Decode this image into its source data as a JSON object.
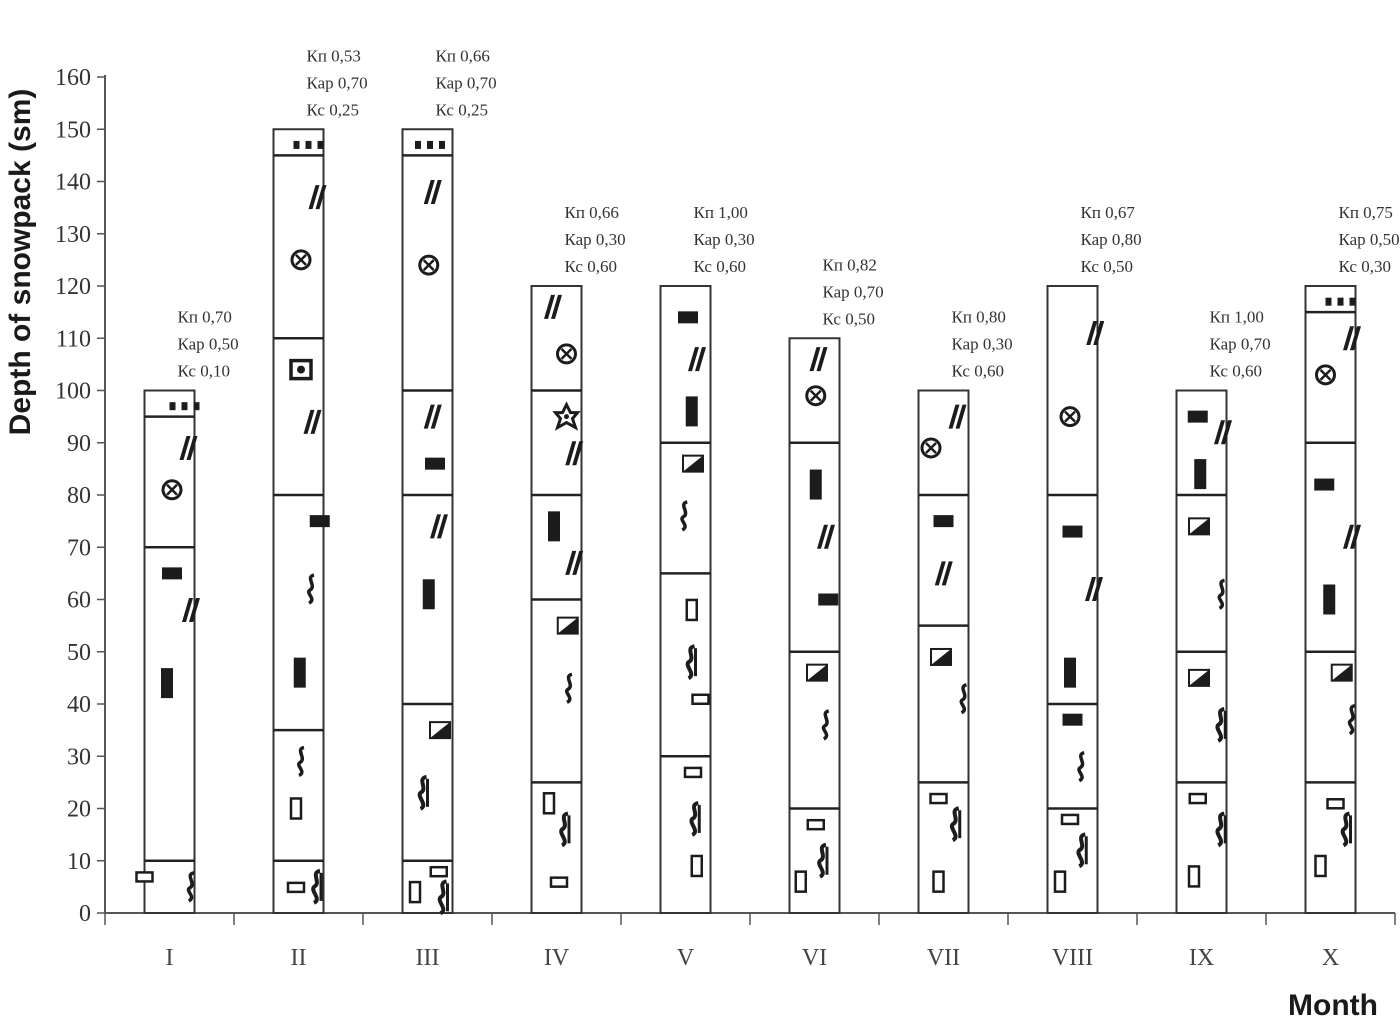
{
  "chart_data": {
    "type": "bar",
    "title": "",
    "ylabel": "Depth of snowpack (sm)",
    "xlabel": "Month",
    "ylim": [
      0,
      160
    ],
    "yticks": [
      0,
      10,
      20,
      30,
      40,
      50,
      60,
      70,
      80,
      90,
      100,
      110,
      120,
      130,
      140,
      150,
      160
    ],
    "categories": [
      "I",
      "II",
      "III",
      "IV",
      "V",
      "VI",
      "VII",
      "VIII",
      "IX",
      "X"
    ],
    "columns": [
      {
        "month": "I",
        "depth": 100,
        "layer_boundaries": [
          10,
          70,
          95
        ],
        "coefficients": [
          "Кп 0,70",
          "Кар 0,50",
          "Кс 0,10"
        ],
        "symbols": [
          {
            "s": "rect-open",
            "y": 7,
            "x": -1
          },
          {
            "s": "cup",
            "y": 5,
            "x": 0.85
          },
          {
            "s": "rect-v",
            "y": 44,
            "x": -0.1
          },
          {
            "s": "rect-h",
            "y": 65,
            "x": 0.1
          },
          {
            "s": "slash",
            "y": 58,
            "x": 0.7
          },
          {
            "s": "circle-x",
            "y": 81,
            "x": 0.1
          },
          {
            "s": "slash",
            "y": 89,
            "x": 0.6
          },
          {
            "s": "dots",
            "y": 97,
            "x": 0.6
          }
        ]
      },
      {
        "month": "II",
        "depth": 150,
        "layer_boundaries": [
          10,
          35,
          80,
          110,
          145
        ],
        "coefficients": [
          "Кп 0,53",
          "Кар 0,70",
          "Кс 0,25"
        ],
        "symbols": [
          {
            "s": "rect-open",
            "y": 5,
            "x": -0.1
          },
          {
            "s": "cupx",
            "y": 5,
            "x": 0.7
          },
          {
            "s": "rect-vopen",
            "y": 20,
            "x": -0.1
          },
          {
            "s": "cup",
            "y": 29,
            "x": 0.1
          },
          {
            "s": "rect-v",
            "y": 46,
            "x": 0.05
          },
          {
            "s": "cup",
            "y": 62,
            "x": 0.5
          },
          {
            "s": "rect-h",
            "y": 75,
            "x": 0.85
          },
          {
            "s": "slash",
            "y": 94,
            "x": 0.4
          },
          {
            "s": "cup-box",
            "y": 104,
            "x": 0.1
          },
          {
            "s": "circle-x",
            "y": 125,
            "x": 0.1
          },
          {
            "s": "slash",
            "y": 137,
            "x": 0.6
          },
          {
            "s": "dots",
            "y": 147,
            "x": 0.4
          }
        ]
      },
      {
        "month": "III",
        "depth": 150,
        "layer_boundaries": [
          10,
          40,
          80,
          100,
          145
        ],
        "coefficients": [
          "Кп 0,66",
          "Кар 0,70",
          "Кс 0,25"
        ],
        "symbols": [
          {
            "s": "rect-vopen",
            "y": 4,
            "x": -0.5
          },
          {
            "s": "rect-open",
            "y": 8,
            "x": 0.45
          },
          {
            "s": "cupx",
            "y": 3,
            "x": 0.6
          },
          {
            "s": "cupx",
            "y": 23,
            "x": -0.2
          },
          {
            "s": "half",
            "y": 35,
            "x": 0.5
          },
          {
            "s": "rect-v",
            "y": 61,
            "x": 0.05
          },
          {
            "s": "slash",
            "y": 74,
            "x": 0.3
          },
          {
            "s": "rect-h",
            "y": 86,
            "x": 0.3
          },
          {
            "s": "slash",
            "y": 95,
            "x": 0.05
          },
          {
            "s": "circle-x",
            "y": 124,
            "x": 0.05
          },
          {
            "s": "slash",
            "y": 138,
            "x": 0.05
          },
          {
            "s": "dots",
            "y": 147,
            "x": 0.1
          }
        ]
      },
      {
        "month": "IV",
        "depth": 120,
        "layer_boundaries": [
          25,
          60,
          80,
          100
        ],
        "coefficients": [
          "Кп 0,66",
          "Кар 0,30",
          "Кс 0,60"
        ],
        "symbols": [
          {
            "s": "rect-open",
            "y": 6,
            "x": 0.1
          },
          {
            "s": "rect-vopen",
            "y": 21,
            "x": -0.3
          },
          {
            "s": "cupx",
            "y": 16,
            "x": 0.3
          },
          {
            "s": "cup",
            "y": 43,
            "x": 0.5
          },
          {
            "s": "half",
            "y": 55,
            "x": 0.45
          },
          {
            "s": "slash",
            "y": 67,
            "x": 0.55
          },
          {
            "s": "rect-v",
            "y": 74,
            "x": -0.1
          },
          {
            "s": "slash",
            "y": 88,
            "x": 0.55
          },
          {
            "s": "star",
            "y": 95,
            "x": 0.4
          },
          {
            "s": "circle-x",
            "y": 107,
            "x": 0.4
          },
          {
            "s": "slash",
            "y": 116,
            "x": -0.3
          }
        ]
      },
      {
        "month": "V",
        "depth": 120,
        "layer_boundaries": [
          30,
          65,
          90
        ],
        "coefficients": [
          "Кп 1,00",
          "Кар 0,30",
          "Кс 0,60"
        ],
        "symbols": [
          {
            "s": "rect-vopen",
            "y": 9,
            "x": 0.45
          },
          {
            "s": "cupx",
            "y": 18,
            "x": 0.35
          },
          {
            "s": "rect-open",
            "y": 27,
            "x": 0.3
          },
          {
            "s": "rect-open",
            "y": 41,
            "x": 0.6
          },
          {
            "s": "cupx",
            "y": 48,
            "x": 0.2
          },
          {
            "s": "rect-vopen",
            "y": 58,
            "x": 0.25
          },
          {
            "s": "cup",
            "y": 76,
            "x": -0.05
          },
          {
            "s": "half",
            "y": 86,
            "x": 0.3
          },
          {
            "s": "rect-v",
            "y": 96,
            "x": 0.25
          },
          {
            "s": "slash",
            "y": 106,
            "x": 0.3
          },
          {
            "s": "rect-h",
            "y": 114,
            "x": 0.1
          }
        ]
      },
      {
        "month": "VI",
        "depth": 110,
        "layer_boundaries": [
          20,
          50,
          90
        ],
        "coefficients": [
          "Кп 0,82",
          "Кар 0,70",
          "Кс 0,50"
        ],
        "symbols": [
          {
            "s": "rect-vopen",
            "y": 6,
            "x": -0.55
          },
          {
            "s": "cupx",
            "y": 10,
            "x": 0.3
          },
          {
            "s": "rect-open",
            "y": 17,
            "x": 0.05
          },
          {
            "s": "cup",
            "y": 36,
            "x": 0.45
          },
          {
            "s": "half",
            "y": 46,
            "x": 0.1
          },
          {
            "s": "rect-h",
            "y": 60,
            "x": 0.55
          },
          {
            "s": "slash",
            "y": 72,
            "x": 0.3
          },
          {
            "s": "rect-v",
            "y": 82,
            "x": 0.05
          },
          {
            "s": "circle-x",
            "y": 99,
            "x": 0.05
          },
          {
            "s": "slash",
            "y": 106,
            "x": 0.0
          }
        ]
      },
      {
        "month": "VII",
        "depth": 100,
        "layer_boundaries": [
          25,
          55,
          80
        ],
        "coefficients": [
          "Кп 0,80",
          "Кар 0,30",
          "Кс 0,60"
        ],
        "symbols": [
          {
            "s": "rect-vopen",
            "y": 6,
            "x": -0.2
          },
          {
            "s": "cupx",
            "y": 17,
            "x": 0.45
          },
          {
            "s": "rect-open",
            "y": 22,
            "x": -0.2
          },
          {
            "s": "cup",
            "y": 41,
            "x": 0.8
          },
          {
            "s": "half",
            "y": 49,
            "x": -0.1
          },
          {
            "s": "slash",
            "y": 65,
            "x": -0.15
          },
          {
            "s": "rect-h",
            "y": 75,
            "x": 0.0
          },
          {
            "s": "circle-x",
            "y": 89,
            "x": -0.5
          },
          {
            "s": "slash",
            "y": 95,
            "x": 0.4
          }
        ]
      },
      {
        "month": "VIII",
        "depth": 120,
        "layer_boundaries": [
          20,
          40,
          80
        ],
        "coefficients": [
          "Кп 0,67",
          "Кар 0,80",
          "Кс 0,50"
        ],
        "symbols": [
          {
            "s": "rect-vopen",
            "y": 6,
            "x": -0.5
          },
          {
            "s": "cupx",
            "y": 12,
            "x": 0.35
          },
          {
            "s": "rect-open",
            "y": 18,
            "x": -0.1
          },
          {
            "s": "cup",
            "y": 28,
            "x": 0.35
          },
          {
            "s": "rect-h",
            "y": 37,
            "x": 0.0
          },
          {
            "s": "rect-v",
            "y": 46,
            "x": -0.1
          },
          {
            "s": "slash",
            "y": 62,
            "x": 0.7
          },
          {
            "s": "rect-h",
            "y": 73,
            "x": 0.0
          },
          {
            "s": "circle-x",
            "y": 95,
            "x": -0.1
          },
          {
            "s": "slash",
            "y": 111,
            "x": 0.75
          }
        ]
      },
      {
        "month": "IX",
        "depth": 100,
        "layer_boundaries": [
          25,
          50,
          80
        ],
        "coefficients": [
          "Кп 1,00",
          "Кар 0,70",
          "Кс 0,60"
        ],
        "symbols": [
          {
            "s": "rect-vopen",
            "y": 7,
            "x": -0.3
          },
          {
            "s": "cupx",
            "y": 16,
            "x": 0.75
          },
          {
            "s": "rect-open",
            "y": 22,
            "x": -0.15
          },
          {
            "s": "cupx",
            "y": 36,
            "x": 0.75
          },
          {
            "s": "half",
            "y": 45,
            "x": -0.1
          },
          {
            "s": "cup",
            "y": 61,
            "x": 0.8
          },
          {
            "s": "half",
            "y": 74,
            "x": -0.1
          },
          {
            "s": "rect-v",
            "y": 84,
            "x": -0.05
          },
          {
            "s": "slash",
            "y": 92,
            "x": 0.7
          },
          {
            "s": "rect-h",
            "y": 95,
            "x": -0.15
          }
        ]
      },
      {
        "month": "X",
        "depth": 120,
        "layer_boundaries": [
          25,
          50,
          90,
          115
        ],
        "coefficients": [
          "Кп 0,75",
          "Кар 0,50",
          "Кс 0,30"
        ],
        "symbols": [
          {
            "s": "rect-vopen",
            "y": 9,
            "x": -0.4
          },
          {
            "s": "cupx",
            "y": 16,
            "x": 0.6
          },
          {
            "s": "rect-open",
            "y": 21,
            "x": 0.2
          },
          {
            "s": "cup",
            "y": 37,
            "x": 0.85
          },
          {
            "s": "half",
            "y": 46,
            "x": 0.45
          },
          {
            "s": "rect-v",
            "y": 60,
            "x": -0.05
          },
          {
            "s": "slash",
            "y": 72,
            "x": 0.7
          },
          {
            "s": "rect-h",
            "y": 82,
            "x": -0.25
          },
          {
            "s": "circle-x",
            "y": 103,
            "x": -0.2
          },
          {
            "s": "slash",
            "y": 110,
            "x": 0.7
          },
          {
            "s": "dots",
            "y": 117,
            "x": 0.4
          }
        ]
      }
    ],
    "grid": false,
    "legend": "none"
  }
}
